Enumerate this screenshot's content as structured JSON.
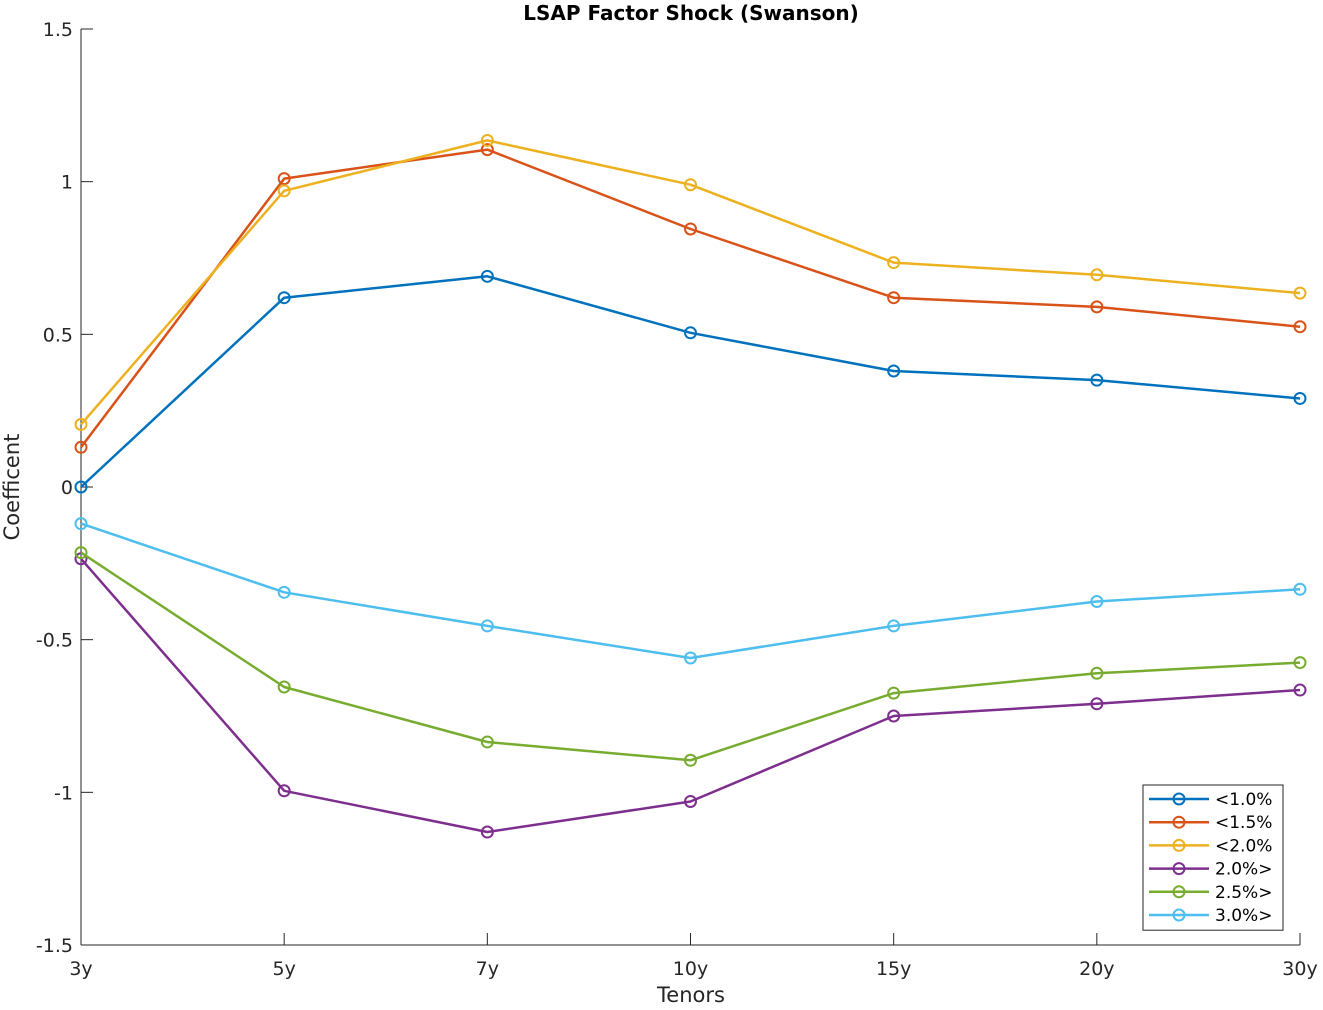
{
  "chart_data": {
    "type": "line",
    "title": "LSAP Factor Shock (Swanson)",
    "xlabel": "Tenors",
    "ylabel": "Coefficent",
    "categories": [
      "3y",
      "5y",
      "7y",
      "10y",
      "15y",
      "20y",
      "30y"
    ],
    "ylim": [
      -1.5,
      1.5
    ],
    "yticks": [
      -1.5,
      -1,
      -0.5,
      0,
      0.5,
      1,
      1.5
    ],
    "ytick_labels": [
      "-1.5",
      "-1",
      "-0.5",
      "0",
      "0.5",
      "1",
      "1.5"
    ],
    "grid": false,
    "legend_position": "bottom-right",
    "series": [
      {
        "name": "<1.0%",
        "color": "#0072BD",
        "values": [
          0.0,
          0.62,
          0.69,
          0.505,
          0.38,
          0.35,
          0.29
        ]
      },
      {
        "name": "<1.5%",
        "color": "#D95319",
        "values": [
          0.13,
          1.01,
          1.105,
          0.845,
          0.62,
          0.59,
          0.525
        ]
      },
      {
        "name": "<2.0%",
        "color": "#EDB120",
        "values": [
          0.205,
          0.97,
          1.135,
          0.99,
          0.735,
          0.695,
          0.635
        ]
      },
      {
        "name": "2.0%>",
        "color": "#7E2F8E",
        "values": [
          -0.235,
          -0.995,
          -1.13,
          -1.03,
          -0.75,
          -0.71,
          -0.665
        ]
      },
      {
        "name": "2.5%>",
        "color": "#77AC30",
        "values": [
          -0.215,
          -0.655,
          -0.835,
          -0.895,
          -0.675,
          -0.61,
          -0.575
        ]
      },
      {
        "name": "3.0%>",
        "color": "#4DBEEE",
        "values": [
          -0.12,
          -0.345,
          -0.455,
          -0.56,
          -0.455,
          -0.375,
          -0.335
        ]
      }
    ]
  }
}
